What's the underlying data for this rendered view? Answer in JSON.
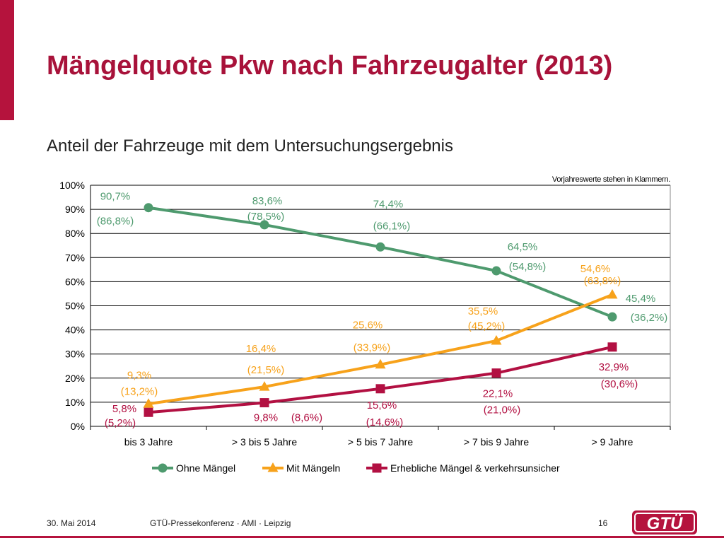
{
  "slide": {
    "title": "Mängelquote Pkw nach Fahrzeugalter (2013)",
    "subtitle": "Anteil der Fahrzeuge mit dem Untersuchungsergebnis"
  },
  "footer": {
    "date": "30. Mai 2014",
    "event": "GTÜ-Pressekonferenz · AMI · Leipzig",
    "page": "16",
    "logo_text": "GTÜ"
  },
  "colors": {
    "accent": "#b5133d",
    "green": "#4e9a6e",
    "orange": "#f7a21b",
    "red": "#b21042"
  },
  "chart_data": {
    "type": "line",
    "note": "Vorjahreswerte stehen in Klammern.",
    "categories": [
      "bis 3 Jahre",
      "> 3 bis 5 Jahre",
      "> 5 bis 7 Jahre",
      "> 7 bis 9 Jahre",
      "> 9 Jahre"
    ],
    "ylim": [
      0,
      100
    ],
    "yticks": [
      "0%",
      "10%",
      "20%",
      "30%",
      "40%",
      "50%",
      "60%",
      "70%",
      "80%",
      "90%",
      "100%"
    ],
    "grid": true,
    "legend": "bottom",
    "series": [
      {
        "name": "Ohne Mängel",
        "marker": "circle",
        "color": "#4e9a6e",
        "values": [
          90.7,
          83.6,
          74.4,
          64.5,
          45.4
        ],
        "labels": [
          "90,7%",
          "83,6%",
          "74,4%",
          "64,5%",
          "45,4%"
        ],
        "prev_labels": [
          "(86,8%)",
          "(78,5%)",
          "(66,1%)",
          "(54,8%)",
          "(36,2%)"
        ]
      },
      {
        "name": "Mit Mängeln",
        "marker": "triangle",
        "color": "#f7a21b",
        "values": [
          9.3,
          16.4,
          25.6,
          35.5,
          54.6
        ],
        "labels": [
          "9,3%",
          "16,4%",
          "25,6%",
          "35,5%",
          "54,6%"
        ],
        "prev_labels": [
          "(13,2%)",
          "(21,5%)",
          "(33,9%)",
          "(45,2%)",
          "(63,8%)"
        ]
      },
      {
        "name": "Erhebliche Mängel & verkehrsunsicher",
        "marker": "square",
        "color": "#b21042",
        "values": [
          5.8,
          9.8,
          15.6,
          22.1,
          32.9
        ],
        "labels": [
          "5,8%",
          "9,8%",
          "15,6%",
          "22,1%",
          "32,9%"
        ],
        "prev_labels": [
          "(5,2%)",
          "(8,6%)",
          "(14,6%)",
          "(21,0%)",
          "(30,6%)"
        ]
      }
    ]
  }
}
